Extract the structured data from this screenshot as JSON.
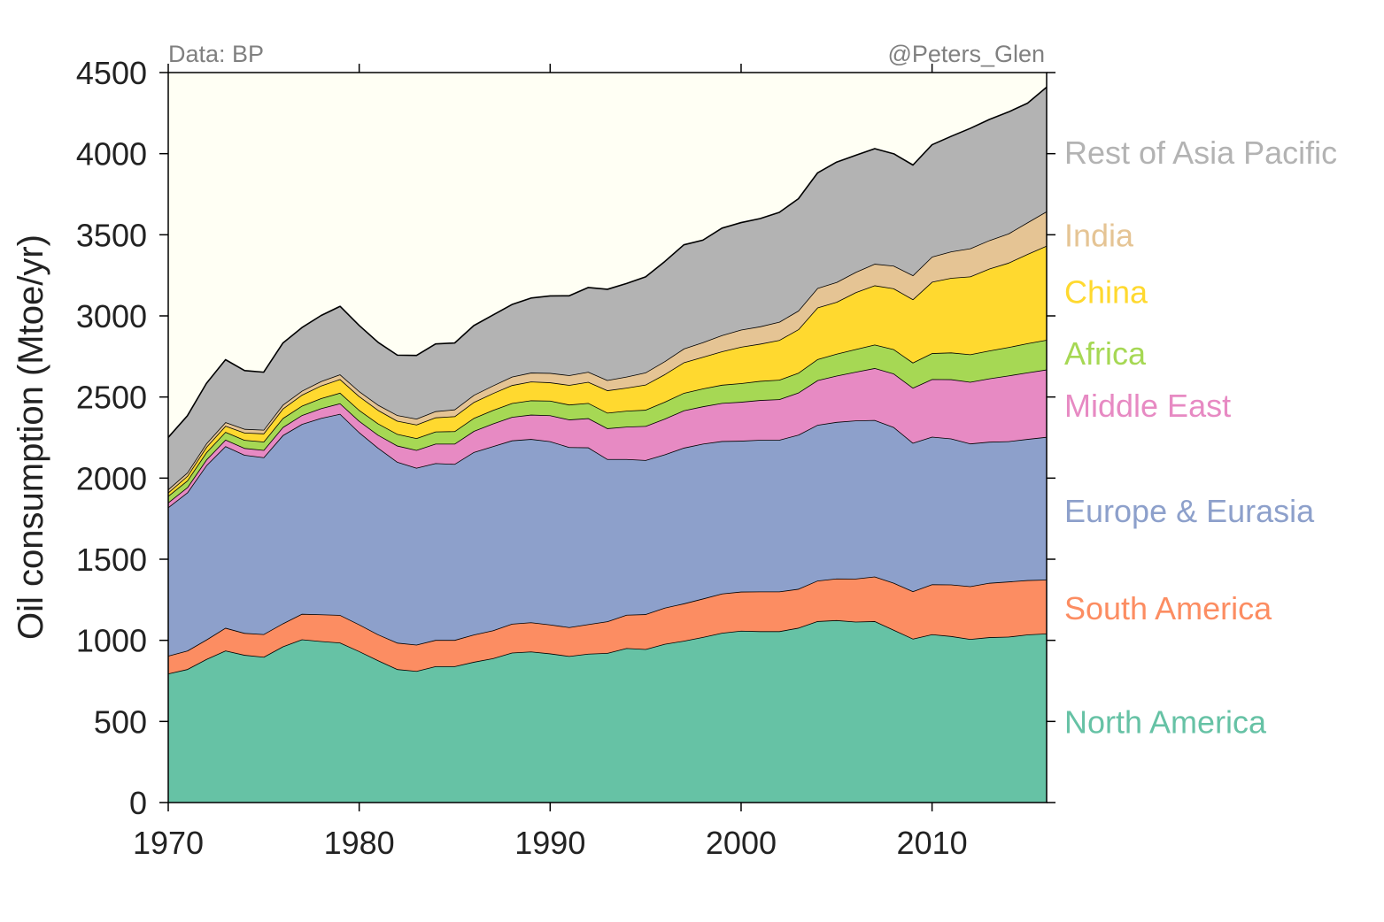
{
  "chart_data": {
    "type": "area",
    "stacked": true,
    "title": "",
    "xlabel": "",
    "ylabel": "Oil consumption (Mtoe/yr)",
    "source_note": "Data: BP",
    "author_note": "@Peters_Glen",
    "xlim": [
      1970,
      2016
    ],
    "ylim": [
      0,
      4500
    ],
    "x_ticks": [
      1970,
      1980,
      1990,
      2000,
      2010
    ],
    "y_ticks": [
      0,
      500,
      1000,
      1500,
      2000,
      2500,
      3000,
      3500,
      4000,
      4500
    ],
    "grid": false,
    "legend": "right-side direct labels",
    "background_color": "#fffff4",
    "x": [
      1970,
      1971,
      1972,
      1973,
      1974,
      1975,
      1976,
      1977,
      1978,
      1979,
      1980,
      1981,
      1982,
      1983,
      1984,
      1985,
      1986,
      1987,
      1988,
      1989,
      1990,
      1991,
      1992,
      1993,
      1994,
      1995,
      1996,
      1997,
      1998,
      1999,
      2000,
      2001,
      2002,
      2003,
      2004,
      2005,
      2006,
      2007,
      2008,
      2009,
      2010,
      2011,
      2012,
      2013,
      2014,
      2015,
      2016
    ],
    "series": [
      {
        "name": "North America",
        "color": "#66c2a5",
        "label_y": 500,
        "values": [
          795,
          822,
          884,
          937,
          910,
          898,
          962,
          1006,
          995,
          986,
          933,
          876,
          822,
          811,
          840,
          840,
          867,
          889,
          924,
          931,
          919,
          903,
          917,
          922,
          952,
          946,
          978,
          997,
          1020,
          1046,
          1059,
          1056,
          1056,
          1077,
          1118,
          1124,
          1115,
          1118,
          1064,
          1010,
          1037,
          1026,
          1008,
          1019,
          1022,
          1036,
          1042
        ]
      },
      {
        "name": "South America",
        "color": "#fc8d62",
        "label_y": 1200,
        "values": [
          110,
          114,
          120,
          140,
          135,
          140,
          142,
          157,
          165,
          170,
          165,
          160,
          163,
          162,
          162,
          162,
          168,
          172,
          178,
          180,
          178,
          178,
          182,
          195,
          205,
          215,
          223,
          230,
          237,
          242,
          241,
          245,
          245,
          240,
          250,
          257,
          265,
          275,
          290,
          292,
          308,
          318,
          325,
          335,
          340,
          335,
          332
        ]
      },
      {
        "name": "Europe & Eurasia",
        "color": "#8da0cb",
        "label_y": 1800,
        "values": [
          915,
          975,
          1075,
          1120,
          1098,
          1090,
          1160,
          1170,
          1210,
          1240,
          1185,
          1150,
          1115,
          1090,
          1090,
          1085,
          1125,
          1135,
          1130,
          1130,
          1130,
          1110,
          1090,
          1000,
          960,
          950,
          945,
          960,
          955,
          940,
          930,
          935,
          935,
          950,
          960,
          965,
          975,
          965,
          960,
          915,
          910,
          900,
          880,
          870,
          865,
          870,
          880
        ]
      },
      {
        "name": "Middle East",
        "color": "#e78ac3",
        "label_y": 2450,
        "values": [
          30,
          32,
          35,
          40,
          42,
          45,
          50,
          55,
          60,
          65,
          70,
          80,
          100,
          110,
          120,
          125,
          130,
          140,
          145,
          150,
          160,
          170,
          180,
          190,
          200,
          210,
          220,
          230,
          230,
          235,
          240,
          245,
          250,
          260,
          275,
          285,
          300,
          320,
          330,
          340,
          355,
          365,
          380,
          390,
          405,
          410,
          415
        ]
      },
      {
        "name": "Africa",
        "color": "#a6d854",
        "label_y": 2770,
        "values": [
          40,
          42,
          45,
          48,
          50,
          52,
          55,
          58,
          62,
          65,
          67,
          70,
          72,
          73,
          75,
          77,
          80,
          83,
          85,
          88,
          90,
          92,
          94,
          96,
          98,
          100,
          104,
          108,
          110,
          112,
          115,
          118,
          120,
          122,
          130,
          135,
          140,
          145,
          150,
          155,
          160,
          165,
          170,
          172,
          175,
          180,
          183
        ]
      },
      {
        "name": "China",
        "color": "#ffd92f",
        "label_y": 3150,
        "values": [
          21,
          28,
          33,
          37,
          45,
          50,
          59,
          67,
          78,
          84,
          85,
          83,
          81,
          84,
          87,
          92,
          98,
          104,
          111,
          116,
          113,
          121,
          130,
          138,
          142,
          155,
          170,
          188,
          195,
          206,
          224,
          229,
          245,
          268,
          318,
          320,
          350,
          365,
          375,
          390,
          440,
          460,
          480,
          505,
          520,
          550,
          580
        ]
      },
      {
        "name": "India",
        "color": "#e5c494",
        "label_y": 3500,
        "values": [
          20,
          21,
          22,
          23,
          23,
          23,
          24,
          25,
          27,
          29,
          31,
          32,
          35,
          36,
          38,
          42,
          44,
          47,
          52,
          55,
          58,
          60,
          62,
          63,
          68,
          75,
          80,
          85,
          90,
          100,
          106,
          107,
          112,
          115,
          120,
          122,
          125,
          133,
          140,
          148,
          155,
          163,
          173,
          175,
          180,
          195,
          212
        ]
      },
      {
        "name": "Rest of Asia Pacific",
        "color": "#b3b3b3",
        "label_y": 4010,
        "values": [
          320,
          350,
          370,
          385,
          360,
          355,
          380,
          390,
          405,
          420,
          405,
          385,
          370,
          390,
          415,
          410,
          428,
          435,
          445,
          460,
          475,
          490,
          520,
          560,
          575,
          590,
          615,
          640,
          630,
          660,
          660,
          665,
          675,
          690,
          710,
          740,
          720,
          710,
          690,
          680,
          690,
          710,
          740,
          745,
          750,
          735,
          766
        ]
      }
    ]
  }
}
